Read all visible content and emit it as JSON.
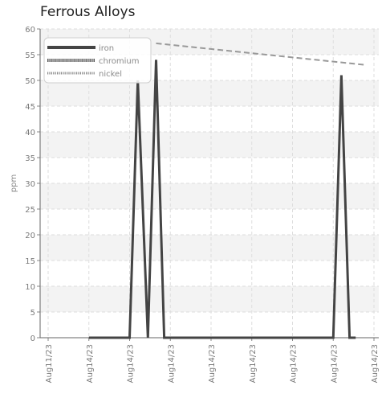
{
  "chart_data": {
    "type": "line",
    "title": "Ferrous Alloys",
    "ylabel": "ppm",
    "xlabel": "",
    "ylim": [
      0,
      60
    ],
    "y_ticks": [
      0,
      5,
      10,
      15,
      20,
      25,
      30,
      35,
      40,
      45,
      50,
      55,
      60
    ],
    "x_tick_labels": [
      "Aug11/23",
      "Aug14/23",
      "Aug14/23",
      "Aug14/23",
      "Aug14/23",
      "Aug14/23",
      "Aug14/23",
      "Aug14/23",
      "Aug14/23"
    ],
    "x_range": [
      0,
      8
    ],
    "grid": true,
    "legend_position": "top-left",
    "series": [
      {
        "name": "iron",
        "color": "#444444",
        "style": "solid",
        "points": [
          [
            1,
            0
          ],
          [
            2,
            0
          ],
          [
            2.2,
            50
          ],
          [
            2.45,
            0
          ],
          [
            2.65,
            54
          ],
          [
            2.85,
            0
          ],
          [
            3.1,
            0
          ],
          [
            4,
            0
          ],
          [
            5,
            0
          ],
          [
            6,
            0
          ],
          [
            7,
            0
          ],
          [
            7.2,
            51
          ],
          [
            7.4,
            0
          ],
          [
            7.55,
            0
          ]
        ]
      },
      {
        "name": "chromium",
        "color": "#555555",
        "style": "dotted",
        "points": []
      },
      {
        "name": "nickel",
        "color": "#999999",
        "style": "dashed",
        "points": [
          [
            2.65,
            57.2
          ],
          [
            7.8,
            53
          ]
        ]
      }
    ]
  }
}
